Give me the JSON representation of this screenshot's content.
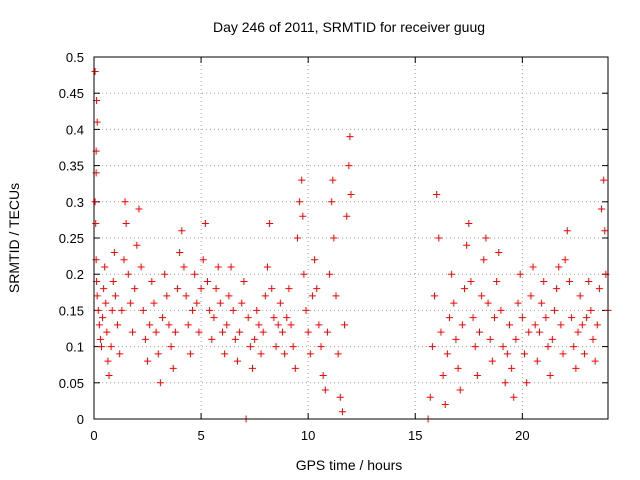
{
  "chart_data": {
    "type": "scatter",
    "title": "Day 246 of 2011, SRMTID for receiver guug",
    "xlabel": "GPS time / hours",
    "ylabel": "SRMTID / TECUs",
    "xlim": [
      0,
      24
    ],
    "ylim": [
      0,
      0.5
    ],
    "xticks": [
      0,
      5,
      10,
      15,
      20
    ],
    "yticks": [
      0,
      0.05,
      0.1,
      0.15,
      0.2,
      0.25,
      0.3,
      0.35,
      0.4,
      0.45,
      0.5
    ],
    "grid": true,
    "marker": "+",
    "marker_color": "#ff0000",
    "series": [
      {
        "name": "SRMTID",
        "points": [
          [
            0.05,
            0.48
          ],
          [
            0.1,
            0.37
          ],
          [
            0.12,
            0.44
          ],
          [
            0.15,
            0.41
          ],
          [
            0.1,
            0.34
          ],
          [
            0.05,
            0.3
          ],
          [
            0.08,
            0.27
          ],
          [
            0.1,
            0.22
          ],
          [
            0.12,
            0.19
          ],
          [
            0.15,
            0.17
          ],
          [
            0.2,
            0.15
          ],
          [
            0.25,
            0.13
          ],
          [
            0.3,
            0.11
          ],
          [
            0.35,
            0.1
          ],
          [
            0.4,
            0.14
          ],
          [
            0.45,
            0.18
          ],
          [
            0.5,
            0.21
          ],
          [
            0.55,
            0.16
          ],
          [
            0.6,
            0.12
          ],
          [
            0.65,
            0.08
          ],
          [
            0.7,
            0.06
          ],
          [
            0.8,
            0.1
          ],
          [
            0.85,
            0.15
          ],
          [
            0.9,
            0.19
          ],
          [
            0.95,
            0.23
          ],
          [
            1.0,
            0.17
          ],
          [
            1.1,
            0.13
          ],
          [
            1.2,
            0.09
          ],
          [
            1.3,
            0.15
          ],
          [
            1.4,
            0.22
          ],
          [
            1.45,
            0.3
          ],
          [
            1.5,
            0.27
          ],
          [
            1.6,
            0.2
          ],
          [
            1.7,
            0.16
          ],
          [
            1.8,
            0.12
          ],
          [
            1.9,
            0.18
          ],
          [
            2.0,
            0.24
          ],
          [
            2.1,
            0.29
          ],
          [
            2.2,
            0.21
          ],
          [
            2.3,
            0.15
          ],
          [
            2.4,
            0.11
          ],
          [
            2.5,
            0.08
          ],
          [
            2.6,
            0.13
          ],
          [
            2.7,
            0.19
          ],
          [
            2.8,
            0.16
          ],
          [
            2.9,
            0.12
          ],
          [
            3.0,
            0.09
          ],
          [
            3.1,
            0.05
          ],
          [
            3.2,
            0.14
          ],
          [
            3.3,
            0.2
          ],
          [
            3.4,
            0.17
          ],
          [
            3.5,
            0.13
          ],
          [
            3.6,
            0.1
          ],
          [
            3.7,
            0.07
          ],
          [
            3.8,
            0.12
          ],
          [
            3.9,
            0.18
          ],
          [
            4.0,
            0.23
          ],
          [
            4.1,
            0.26
          ],
          [
            4.2,
            0.21
          ],
          [
            4.3,
            0.17
          ],
          [
            4.4,
            0.13
          ],
          [
            4.5,
            0.09
          ],
          [
            4.6,
            0.15
          ],
          [
            4.7,
            0.2
          ],
          [
            4.8,
            0.16
          ],
          [
            4.9,
            0.12
          ],
          [
            5.0,
            0.18
          ],
          [
            5.1,
            0.22
          ],
          [
            5.2,
            0.27
          ],
          [
            5.3,
            0.19
          ],
          [
            5.4,
            0.15
          ],
          [
            5.5,
            0.11
          ],
          [
            5.6,
            0.14
          ],
          [
            5.7,
            0.18
          ],
          [
            5.8,
            0.21
          ],
          [
            5.9,
            0.16
          ],
          [
            6.0,
            0.12
          ],
          [
            6.1,
            0.09
          ],
          [
            6.2,
            0.13
          ],
          [
            6.3,
            0.17
          ],
          [
            6.4,
            0.21
          ],
          [
            6.5,
            0.15
          ],
          [
            6.6,
            0.11
          ],
          [
            6.7,
            0.08
          ],
          [
            6.8,
            0.12
          ],
          [
            6.9,
            0.16
          ],
          [
            7.0,
            0.19
          ],
          [
            7.1,
            0.0
          ],
          [
            7.2,
            0.14
          ],
          [
            7.3,
            0.1
          ],
          [
            7.4,
            0.07
          ],
          [
            7.5,
            0.11
          ],
          [
            7.6,
            0.15
          ],
          [
            7.7,
            0.13
          ],
          [
            7.8,
            0.09
          ],
          [
            7.9,
            0.12
          ],
          [
            8.0,
            0.17
          ],
          [
            8.1,
            0.21
          ],
          [
            8.2,
            0.27
          ],
          [
            8.3,
            0.18
          ],
          [
            8.4,
            0.14
          ],
          [
            8.5,
            0.1
          ],
          [
            8.6,
            0.13
          ],
          [
            8.7,
            0.16
          ],
          [
            8.8,
            0.12
          ],
          [
            8.9,
            0.09
          ],
          [
            9.0,
            0.14
          ],
          [
            9.1,
            0.18
          ],
          [
            9.2,
            0.13
          ],
          [
            9.3,
            0.1
          ],
          [
            9.4,
            0.07
          ],
          [
            9.5,
            0.25
          ],
          [
            9.6,
            0.3
          ],
          [
            9.7,
            0.33
          ],
          [
            9.75,
            0.28
          ],
          [
            9.8,
            0.2
          ],
          [
            9.9,
            0.15
          ],
          [
            10.0,
            0.12
          ],
          [
            10.1,
            0.09
          ],
          [
            10.2,
            0.17
          ],
          [
            10.3,
            0.22
          ],
          [
            10.4,
            0.18
          ],
          [
            10.5,
            0.13
          ],
          [
            10.6,
            0.1
          ],
          [
            10.7,
            0.06
          ],
          [
            10.8,
            0.04
          ],
          [
            10.9,
            0.12
          ],
          [
            11.0,
            0.2
          ],
          [
            11.1,
            0.3
          ],
          [
            11.15,
            0.33
          ],
          [
            11.2,
            0.25
          ],
          [
            11.3,
            0.17
          ],
          [
            11.4,
            0.09
          ],
          [
            11.5,
            0.03
          ],
          [
            11.6,
            0.01
          ],
          [
            11.7,
            0.13
          ],
          [
            11.8,
            0.28
          ],
          [
            11.9,
            0.35
          ],
          [
            11.95,
            0.39
          ],
          [
            12.0,
            0.31
          ],
          [
            15.6,
            0.0
          ],
          [
            15.7,
            0.03
          ],
          [
            15.8,
            0.1
          ],
          [
            15.9,
            0.17
          ],
          [
            16.0,
            0.31
          ],
          [
            16.1,
            0.25
          ],
          [
            16.2,
            0.12
          ],
          [
            16.3,
            0.06
          ],
          [
            16.4,
            0.02
          ],
          [
            16.5,
            0.09
          ],
          [
            16.6,
            0.14
          ],
          [
            16.7,
            0.2
          ],
          [
            16.8,
            0.16
          ],
          [
            16.9,
            0.11
          ],
          [
            17.0,
            0.07
          ],
          [
            17.1,
            0.04
          ],
          [
            17.2,
            0.13
          ],
          [
            17.3,
            0.18
          ],
          [
            17.4,
            0.24
          ],
          [
            17.5,
            0.27
          ],
          [
            17.6,
            0.19
          ],
          [
            17.7,
            0.14
          ],
          [
            17.8,
            0.1
          ],
          [
            17.9,
            0.06
          ],
          [
            18.0,
            0.12
          ],
          [
            18.1,
            0.17
          ],
          [
            18.2,
            0.22
          ],
          [
            18.3,
            0.25
          ],
          [
            18.4,
            0.16
          ],
          [
            18.5,
            0.11
          ],
          [
            18.6,
            0.08
          ],
          [
            18.7,
            0.14
          ],
          [
            18.8,
            0.19
          ],
          [
            18.9,
            0.23
          ],
          [
            19.0,
            0.15
          ],
          [
            19.1,
            0.1
          ],
          [
            19.2,
            0.05
          ],
          [
            19.3,
            0.09
          ],
          [
            19.4,
            0.13
          ],
          [
            19.5,
            0.07
          ],
          [
            19.6,
            0.03
          ],
          [
            19.7,
            0.11
          ],
          [
            19.8,
            0.16
          ],
          [
            19.9,
            0.2
          ],
          [
            20.0,
            0.14
          ],
          [
            20.1,
            0.09
          ],
          [
            20.2,
            0.05
          ],
          [
            20.3,
            0.12
          ],
          [
            20.4,
            0.17
          ],
          [
            20.5,
            0.21
          ],
          [
            20.6,
            0.13
          ],
          [
            20.7,
            0.08
          ],
          [
            20.8,
            0.12
          ],
          [
            20.9,
            0.16
          ],
          [
            21.0,
            0.19
          ],
          [
            21.1,
            0.14
          ],
          [
            21.2,
            0.1
          ],
          [
            21.3,
            0.06
          ],
          [
            21.4,
            0.11
          ],
          [
            21.5,
            0.15
          ],
          [
            21.6,
            0.18
          ],
          [
            21.7,
            0.21
          ],
          [
            21.8,
            0.13
          ],
          [
            21.9,
            0.09
          ],
          [
            22.0,
            0.22
          ],
          [
            22.1,
            0.26
          ],
          [
            22.2,
            0.19
          ],
          [
            22.3,
            0.14
          ],
          [
            22.4,
            0.1
          ],
          [
            22.5,
            0.07
          ],
          [
            22.6,
            0.12
          ],
          [
            22.7,
            0.17
          ],
          [
            22.8,
            0.13
          ],
          [
            22.9,
            0.09
          ],
          [
            23.0,
            0.14
          ],
          [
            23.1,
            0.19
          ],
          [
            23.2,
            0.15
          ],
          [
            23.3,
            0.11
          ],
          [
            23.4,
            0.08
          ],
          [
            23.5,
            0.13
          ],
          [
            23.6,
            0.18
          ],
          [
            23.7,
            0.29
          ],
          [
            23.8,
            0.33
          ],
          [
            23.85,
            0.26
          ],
          [
            23.9,
            0.2
          ],
          [
            24.0,
            0.15
          ]
        ]
      }
    ]
  }
}
